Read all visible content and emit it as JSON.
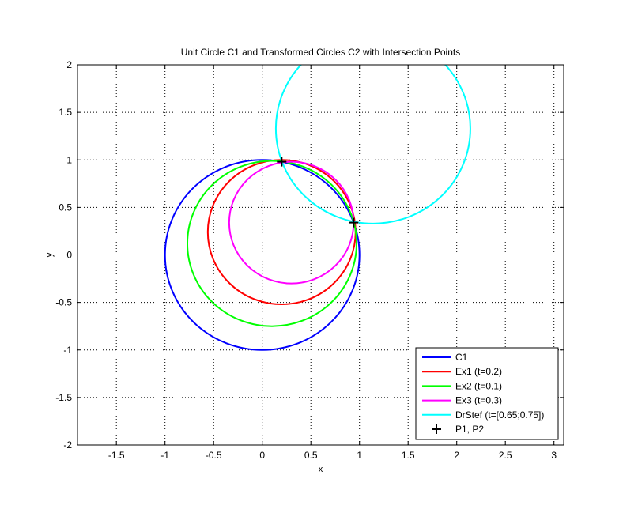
{
  "chart_data": {
    "type": "line",
    "title": "Unit Circle C1 and Transformed Circles C2 with Intersection Points",
    "xlabel": "x",
    "ylabel": "y",
    "xlim": [
      -1.9,
      3.1
    ],
    "ylim": [
      -2,
      2
    ],
    "xticks": [
      -1.5,
      -1,
      -0.5,
      0,
      0.5,
      1,
      1.5,
      2,
      2.5,
      3
    ],
    "yticks": [
      -2,
      -1.5,
      -1,
      -0.5,
      0,
      0.5,
      1,
      1.5,
      2
    ],
    "grid": true,
    "legend_position": "bottom-right",
    "series": [
      {
        "name": "C1",
        "shape": "circle",
        "center": [
          0,
          0
        ],
        "radius": 1,
        "color": "#0000ff"
      },
      {
        "name": "Ex1 (t=0.2)",
        "shape": "circle",
        "center": [
          0.2,
          0.24
        ],
        "radius": 0.76,
        "color": "#ff0000"
      },
      {
        "name": "Ex2 (t=0.1)",
        "shape": "circle",
        "center": [
          0.1,
          0.12
        ],
        "radius": 0.87,
        "color": "#00ff00"
      },
      {
        "name": "Ex3 (t=0.3)",
        "shape": "circle",
        "center": [
          0.3,
          0.34
        ],
        "radius": 0.64,
        "color": "#ff00ff"
      },
      {
        "name": "DrStef (t=[0.65;0.75])",
        "shape": "circle",
        "center": [
          1.14,
          1.33
        ],
        "radius": 1.0,
        "color": "#00ffff"
      }
    ],
    "points": {
      "name": "P1, P2",
      "marker": "+",
      "color": "#000000",
      "values": [
        [
          0.2,
          0.98
        ],
        [
          0.94,
          0.34
        ]
      ]
    }
  }
}
